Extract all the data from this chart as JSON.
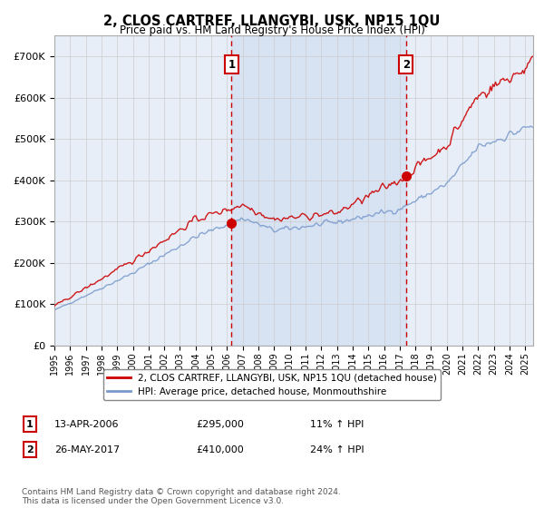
{
  "title": "2, CLOS CARTREF, LLANGYBI, USK, NP15 1QU",
  "subtitle": "Price paid vs. HM Land Registry's House Price Index (HPI)",
  "yticks": [
    0,
    100000,
    200000,
    300000,
    400000,
    500000,
    600000,
    700000
  ],
  "ytick_labels": [
    "£0",
    "£100K",
    "£200K",
    "£300K",
    "£400K",
    "£500K",
    "£600K",
    "£700K"
  ],
  "ylim": [
    0,
    750000
  ],
  "xlim_start": 1995.0,
  "xlim_end": 2025.5,
  "xticks": [
    1995,
    1996,
    1997,
    1998,
    1999,
    2000,
    2001,
    2002,
    2003,
    2004,
    2005,
    2006,
    2007,
    2008,
    2009,
    2010,
    2011,
    2012,
    2013,
    2014,
    2015,
    2016,
    2017,
    2018,
    2019,
    2020,
    2021,
    2022,
    2023,
    2024,
    2025
  ],
  "sale1_x": 2006.28,
  "sale1_y": 295000,
  "sale1_label": "1",
  "sale1_date": "13-APR-2006",
  "sale1_price": "£295,000",
  "sale1_hpi": "11% ↑ HPI",
  "sale2_x": 2017.4,
  "sale2_y": 410000,
  "sale2_label": "2",
  "sale2_date": "26-MAY-2017",
  "sale2_price": "£410,000",
  "sale2_hpi": "24% ↑ HPI",
  "red_line_color": "#cc0000",
  "blue_line_color": "#7799cc",
  "sale_marker_color": "#cc0000",
  "vline_color": "#cc0000",
  "grid_color": "#cccccc",
  "bg_color": "#ffffff",
  "plot_bg_color": "#e8eef8",
  "shade_color": "#d0daf0",
  "legend_label_red": "2, CLOS CARTREF, LLANGYBI, USK, NP15 1QU (detached house)",
  "legend_label_blue": "HPI: Average price, detached house, Monmouthshire",
  "footer_text": "Contains HM Land Registry data © Crown copyright and database right 2024.\nThis data is licensed under the Open Government Licence v3.0."
}
